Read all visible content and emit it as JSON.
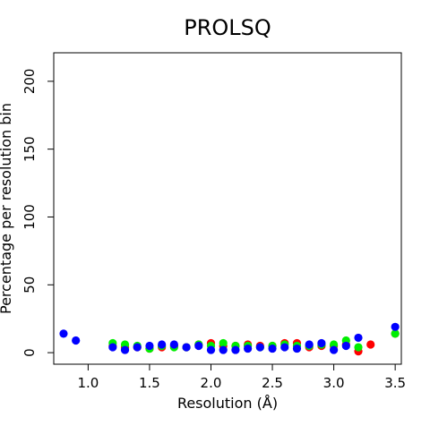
{
  "chart_data": {
    "type": "scatter",
    "title": "PROLSQ",
    "xlabel": "Resolution (Å)",
    "ylabel": "Percentage per resolution bin",
    "xlim": [
      0.72,
      3.55
    ],
    "ylim": [
      -8.5,
      221
    ],
    "x_ticks": [
      1.0,
      1.5,
      2.0,
      2.5,
      3.0,
      3.5
    ],
    "x_tick_labels": [
      "1.0",
      "1.5",
      "2.0",
      "2.5",
      "3.0",
      "3.5"
    ],
    "y_ticks": [
      0,
      50,
      100,
      150,
      200
    ],
    "y_tick_labels": [
      "0",
      "50",
      "100",
      "150",
      "200"
    ],
    "legend": "none",
    "grid": false,
    "series": [
      {
        "color": "#ff0000",
        "points": [
          [
            1.2,
            5
          ],
          [
            1.3,
            4
          ],
          [
            1.4,
            4
          ],
          [
            1.5,
            3
          ],
          [
            1.6,
            4
          ],
          [
            1.7,
            5
          ],
          [
            1.8,
            4
          ],
          [
            1.9,
            6
          ],
          [
            2.0,
            7
          ],
          [
            2.1,
            5
          ],
          [
            2.2,
            5
          ],
          [
            2.3,
            6
          ],
          [
            2.4,
            5
          ],
          [
            2.5,
            5
          ],
          [
            2.6,
            7
          ],
          [
            2.7,
            7
          ],
          [
            2.8,
            4
          ],
          [
            2.9,
            5
          ],
          [
            3.0,
            5
          ],
          [
            3.1,
            6
          ],
          [
            3.2,
            1
          ],
          [
            3.3,
            6
          ],
          [
            3.5,
            14
          ]
        ]
      },
      {
        "color": "#00ee00",
        "points": [
          [
            1.2,
            7
          ],
          [
            1.3,
            6
          ],
          [
            1.4,
            5
          ],
          [
            1.5,
            3
          ],
          [
            1.6,
            5
          ],
          [
            1.7,
            4
          ],
          [
            1.8,
            4
          ],
          [
            1.9,
            6
          ],
          [
            2.0,
            5
          ],
          [
            2.1,
            7
          ],
          [
            2.2,
            5
          ],
          [
            2.3,
            5
          ],
          [
            2.4,
            4
          ],
          [
            2.5,
            5
          ],
          [
            2.6,
            6
          ],
          [
            2.7,
            5
          ],
          [
            2.8,
            5
          ],
          [
            2.9,
            6
          ],
          [
            3.0,
            6
          ],
          [
            3.1,
            9
          ],
          [
            3.2,
            4
          ],
          [
            3.5,
            14
          ]
        ]
      },
      {
        "color": "#0000ff",
        "points": [
          [
            0.8,
            14
          ],
          [
            0.9,
            9
          ],
          [
            1.2,
            4
          ],
          [
            1.3,
            2
          ],
          [
            1.4,
            4
          ],
          [
            1.5,
            5
          ],
          [
            1.6,
            6
          ],
          [
            1.7,
            6
          ],
          [
            1.8,
            4
          ],
          [
            1.9,
            5
          ],
          [
            2.0,
            2
          ],
          [
            2.1,
            2
          ],
          [
            2.2,
            2
          ],
          [
            2.3,
            3
          ],
          [
            2.4,
            4
          ],
          [
            2.5,
            3
          ],
          [
            2.6,
            4
          ],
          [
            2.7,
            3
          ],
          [
            2.8,
            6
          ],
          [
            2.9,
            7
          ],
          [
            3.0,
            2
          ],
          [
            3.1,
            5
          ],
          [
            3.2,
            11
          ],
          [
            3.5,
            19
          ]
        ]
      }
    ]
  }
}
